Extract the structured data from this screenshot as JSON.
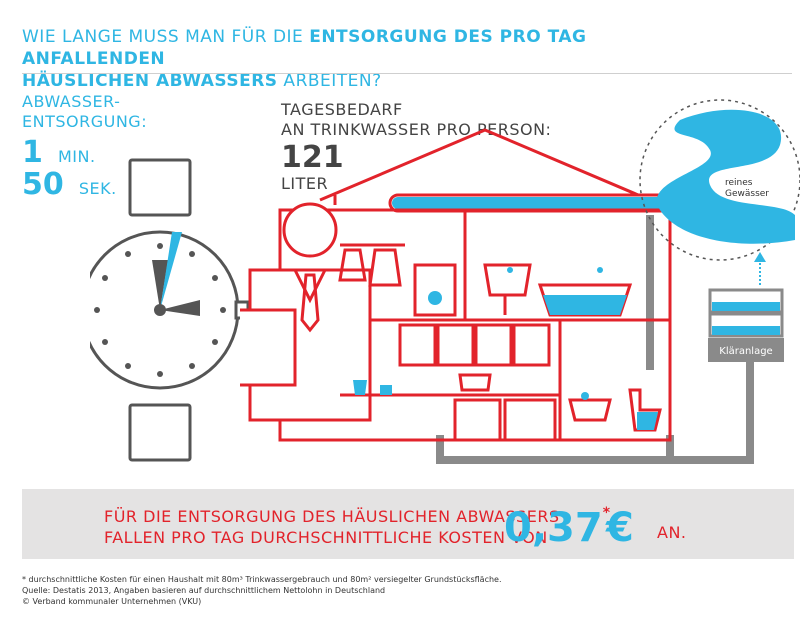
{
  "title": {
    "part1": "WIE LANGE MUSS MAN FÜR DIE ",
    "part2": "ENTSORGUNG DES PRO TAG ANFALLENDEN",
    "part3": "HÄUSLICHEN ABWASSERS",
    "part4": " ARBEITEN?"
  },
  "left_stat": {
    "label_line1": "ABWASSER-",
    "label_line2": "ENTSORGUNG:",
    "minutes": "1",
    "minutes_unit": "MIN.",
    "seconds": "50",
    "seconds_unit": "SEK."
  },
  "middle_stat": {
    "label_line1": "TAGESBEDARF",
    "label_line2": "AN TRINKWASSER PRO PERSON:",
    "value": "121",
    "unit": "LITER"
  },
  "illustration": {
    "water_label_line1": "reines",
    "water_label_line2": "Gewässer",
    "plant_label": "Kläranlage"
  },
  "banner": {
    "line1": "FÜR DIE ENTSORGUNG DES HÄUSLICHEN ABWASSERS",
    "line2": "FALLEN PRO TAG DURCHSCHNITTLICHE KOSTEN VON",
    "price": "0,37",
    "star": "*",
    "currency": "€",
    "suffix": "AN."
  },
  "footer": {
    "note": "* durchschnittliche Kosten für einen Haushalt mit 80m³ Trinkwassergebrauch und 80m² versiegelter Grundstücksfläche.",
    "source": "Quelle: Destatis 2013, Angaben basieren auf durchschnittlichem Nettolohn in Deutschland",
    "copyright": "© Verband kommunaler Unternehmen (VKU)"
  },
  "colors": {
    "cyan": "#2fb6e3",
    "red": "#e2232b",
    "grey": "#8a8a8a"
  }
}
